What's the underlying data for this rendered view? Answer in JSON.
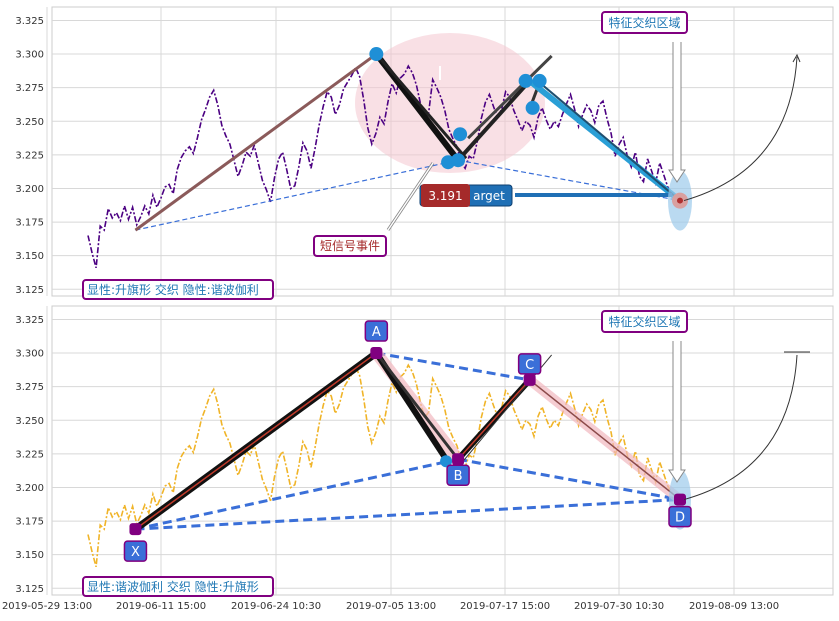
{
  "chart_data": [
    {
      "type": "line",
      "panel": "top",
      "ylim": [
        3.12,
        3.335
      ],
      "y_ticks": [
        "3.125",
        "3.150",
        "3.175",
        "3.200",
        "3.225",
        "3.250",
        "3.275",
        "3.300",
        "3.325"
      ],
      "grid": true,
      "series": [
        {
          "role": "price",
          "color": "#4b0082",
          "y": [
            3.165,
            3.152,
            3.141,
            3.172,
            3.169,
            3.185,
            3.178,
            3.182,
            3.176,
            3.187,
            3.177,
            3.186,
            3.173,
            3.179,
            3.187,
            3.181,
            3.195,
            3.186,
            3.193,
            3.201,
            3.203,
            3.196,
            3.214,
            3.223,
            3.228,
            3.231,
            3.226,
            3.238,
            3.251,
            3.259,
            3.268,
            3.273,
            3.262,
            3.247,
            3.239,
            3.233,
            3.221,
            3.209,
            3.217,
            3.227,
            3.224,
            3.232,
            3.219,
            3.206,
            3.199,
            3.19,
            3.208,
            3.222,
            3.227,
            3.214,
            3.2,
            3.202,
            3.216,
            3.234,
            3.228,
            3.215,
            3.23,
            3.247,
            3.261,
            3.272,
            3.268,
            3.255,
            3.262,
            3.274,
            3.279,
            3.284,
            3.29,
            3.283,
            3.266,
            3.245,
            3.233,
            3.241,
            3.253,
            3.248,
            3.265,
            3.278,
            3.271,
            3.282,
            3.285,
            3.291,
            3.286,
            3.277,
            3.263,
            3.252,
            3.256,
            3.281,
            3.275,
            3.268,
            3.258,
            3.244,
            3.237,
            3.231,
            3.22,
            3.215,
            3.224,
            3.222,
            3.235,
            3.252,
            3.264,
            3.27,
            3.261,
            3.253,
            3.259,
            3.272,
            3.268,
            3.258,
            3.251,
            3.243,
            3.25,
            3.247,
            3.238,
            3.253,
            3.26,
            3.251,
            3.244,
            3.25,
            3.246,
            3.255,
            3.263,
            3.27,
            3.259,
            3.246,
            3.255,
            3.262,
            3.258,
            3.249,
            3.262,
            3.265,
            3.252,
            3.241,
            3.224,
            3.233,
            3.238,
            3.224,
            3.216,
            3.227,
            3.209,
            3.205,
            3.222,
            3.213,
            3.204,
            3.219,
            3.21,
            3.201,
            3.196,
            3.193,
            3.191
          ]
        }
      ],
      "pattern_points": [
        {
          "x": 0.065,
          "y": 3.169
        },
        {
          "x": 0.395,
          "y": 3.3
        },
        {
          "x": 0.507,
          "y": 3.221
        },
        {
          "x": 0.605,
          "y": 3.28
        },
        {
          "x": 0.811,
          "y": 3.191
        }
      ],
      "labels": {
        "signal": "短信号事件",
        "zone": "特征交织区域",
        "target_value": "3.191",
        "target_text": "arget",
        "legend": "显性:升旗形 交织 隐性:谐波伽利"
      }
    },
    {
      "type": "line",
      "panel": "bottom",
      "ylim": [
        3.12,
        3.335
      ],
      "y_ticks": [
        "3.125",
        "3.150",
        "3.175",
        "3.200",
        "3.225",
        "3.250",
        "3.275",
        "3.300",
        "3.325"
      ],
      "x_ticks": [
        "2019-05-29 13:00",
        "2019-06-11 15:00",
        "2019-06-24 10:30",
        "2019-07-05 13:00",
        "2019-07-17 15:00",
        "2019-07-30 10:30",
        "2019-08-09 13:00"
      ],
      "grid": true,
      "series": [
        {
          "role": "price",
          "color": "#f0b428",
          "y": [
            3.165,
            3.152,
            3.141,
            3.172,
            3.169,
            3.185,
            3.178,
            3.182,
            3.176,
            3.187,
            3.177,
            3.186,
            3.173,
            3.179,
            3.187,
            3.181,
            3.195,
            3.186,
            3.193,
            3.201,
            3.203,
            3.196,
            3.214,
            3.223,
            3.228,
            3.231,
            3.226,
            3.238,
            3.251,
            3.259,
            3.268,
            3.273,
            3.262,
            3.247,
            3.239,
            3.233,
            3.221,
            3.209,
            3.217,
            3.227,
            3.224,
            3.232,
            3.219,
            3.206,
            3.199,
            3.19,
            3.208,
            3.222,
            3.227,
            3.214,
            3.2,
            3.202,
            3.216,
            3.234,
            3.228,
            3.215,
            3.23,
            3.247,
            3.261,
            3.272,
            3.268,
            3.255,
            3.262,
            3.274,
            3.279,
            3.284,
            3.29,
            3.283,
            3.266,
            3.245,
            3.233,
            3.241,
            3.253,
            3.248,
            3.265,
            3.278,
            3.271,
            3.282,
            3.285,
            3.291,
            3.286,
            3.277,
            3.263,
            3.252,
            3.256,
            3.281,
            3.275,
            3.268,
            3.258,
            3.244,
            3.237,
            3.231,
            3.22,
            3.215,
            3.224,
            3.222,
            3.235,
            3.252,
            3.264,
            3.27,
            3.261,
            3.253,
            3.259,
            3.272,
            3.268,
            3.258,
            3.251,
            3.243,
            3.25,
            3.247,
            3.238,
            3.253,
            3.26,
            3.251,
            3.244,
            3.25,
            3.246,
            3.255,
            3.263,
            3.27,
            3.259,
            3.246,
            3.255,
            3.262,
            3.258,
            3.249,
            3.262,
            3.265,
            3.252,
            3.241,
            3.224,
            3.233,
            3.238,
            3.224,
            3.216,
            3.227,
            3.209,
            3.205,
            3.222,
            3.213,
            3.204,
            3.219,
            3.21,
            3.201,
            3.196,
            3.193,
            3.191
          ]
        }
      ],
      "pattern_points": [
        {
          "name": "X",
          "x": 0.065,
          "y": 3.169
        },
        {
          "name": "A",
          "x": 0.395,
          "y": 3.3
        },
        {
          "name": "B",
          "x": 0.507,
          "y": 3.221
        },
        {
          "name": "C",
          "x": 0.605,
          "y": 3.28
        },
        {
          "name": "D",
          "x": 0.811,
          "y": 3.191
        }
      ],
      "labels": {
        "zone": "特征交织区域",
        "legend": "显性:谐波伽利 交织 隐性:升旗形"
      }
    }
  ],
  "colors": {
    "top_price": "#4b0082",
    "bottom_price": "#f0b428",
    "dashed_blue": "#3a6fd8",
    "accent_purple": "#800080",
    "label_red": "#a52a2a",
    "label_teal": "#1f77b4",
    "target_bg": "#1f6fb5",
    "target_value_bg": "#a52a2a"
  }
}
